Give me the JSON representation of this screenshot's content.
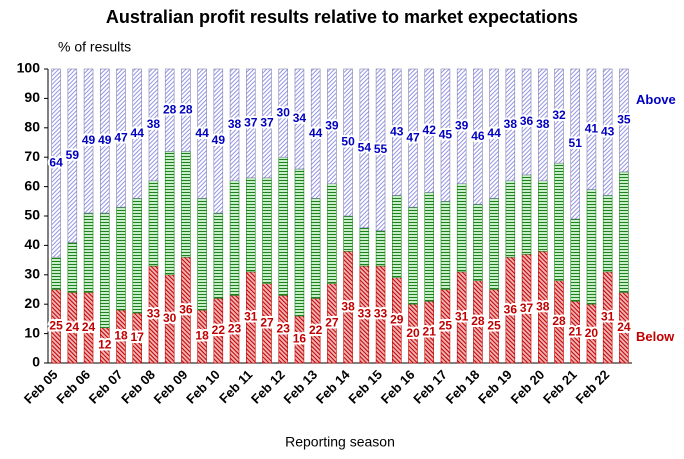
{
  "chart_data": {
    "type": "stacked_bar",
    "title": "Australian profit results relative to market expectations",
    "y_label": "% of results",
    "x_label": "Reporting season",
    "categories": [
      "Feb 05",
      null,
      "Feb 06",
      null,
      "Feb 07",
      null,
      "Feb 08",
      null,
      "Feb 09",
      null,
      "Feb 10",
      null,
      "Feb 11",
      null,
      "Feb 12",
      null,
      "Feb 13",
      null,
      "Feb 14",
      null,
      "Feb 15",
      null,
      "Feb 16",
      null,
      "Feb 17",
      null,
      "Feb 18",
      null,
      "Feb 19",
      null,
      "Feb 20",
      null,
      "Feb 21",
      null,
      "Feb 22",
      null
    ],
    "series": [
      {
        "name": "Below",
        "color": "#c00000",
        "labels": true,
        "values": [
          25,
          24,
          24,
          12,
          18,
          17,
          33,
          30,
          36,
          18,
          22,
          23,
          31,
          27,
          23,
          16,
          22,
          27,
          38,
          33,
          33,
          29,
          20,
          21,
          25,
          31,
          28,
          25,
          36,
          37,
          38,
          28,
          21,
          20,
          31,
          24
        ]
      },
      {
        "color": "#208020",
        "labels": false,
        "values": [
          11,
          17,
          27,
          39,
          35,
          39,
          29,
          42,
          36,
          38,
          29,
          39,
          32,
          36,
          47,
          50,
          34,
          34,
          12,
          13,
          12,
          28,
          33,
          37,
          30,
          30,
          26,
          31,
          26,
          27,
          24,
          40,
          28,
          39,
          26,
          41
        ]
      },
      {
        "name": "Above",
        "color": "#0000c0",
        "labels": true,
        "values": [
          64,
          59,
          49,
          49,
          47,
          44,
          38,
          28,
          28,
          44,
          49,
          38,
          37,
          37,
          30,
          34,
          44,
          39,
          50,
          54,
          55,
          43,
          47,
          42,
          45,
          39,
          46,
          44,
          38,
          36,
          38,
          32,
          51,
          41,
          43,
          35
        ]
      }
    ],
    "ylim": [
      0,
      100
    ],
    "yticks": [
      0,
      10,
      20,
      30,
      40,
      50,
      60,
      70,
      80,
      90,
      100
    ]
  }
}
